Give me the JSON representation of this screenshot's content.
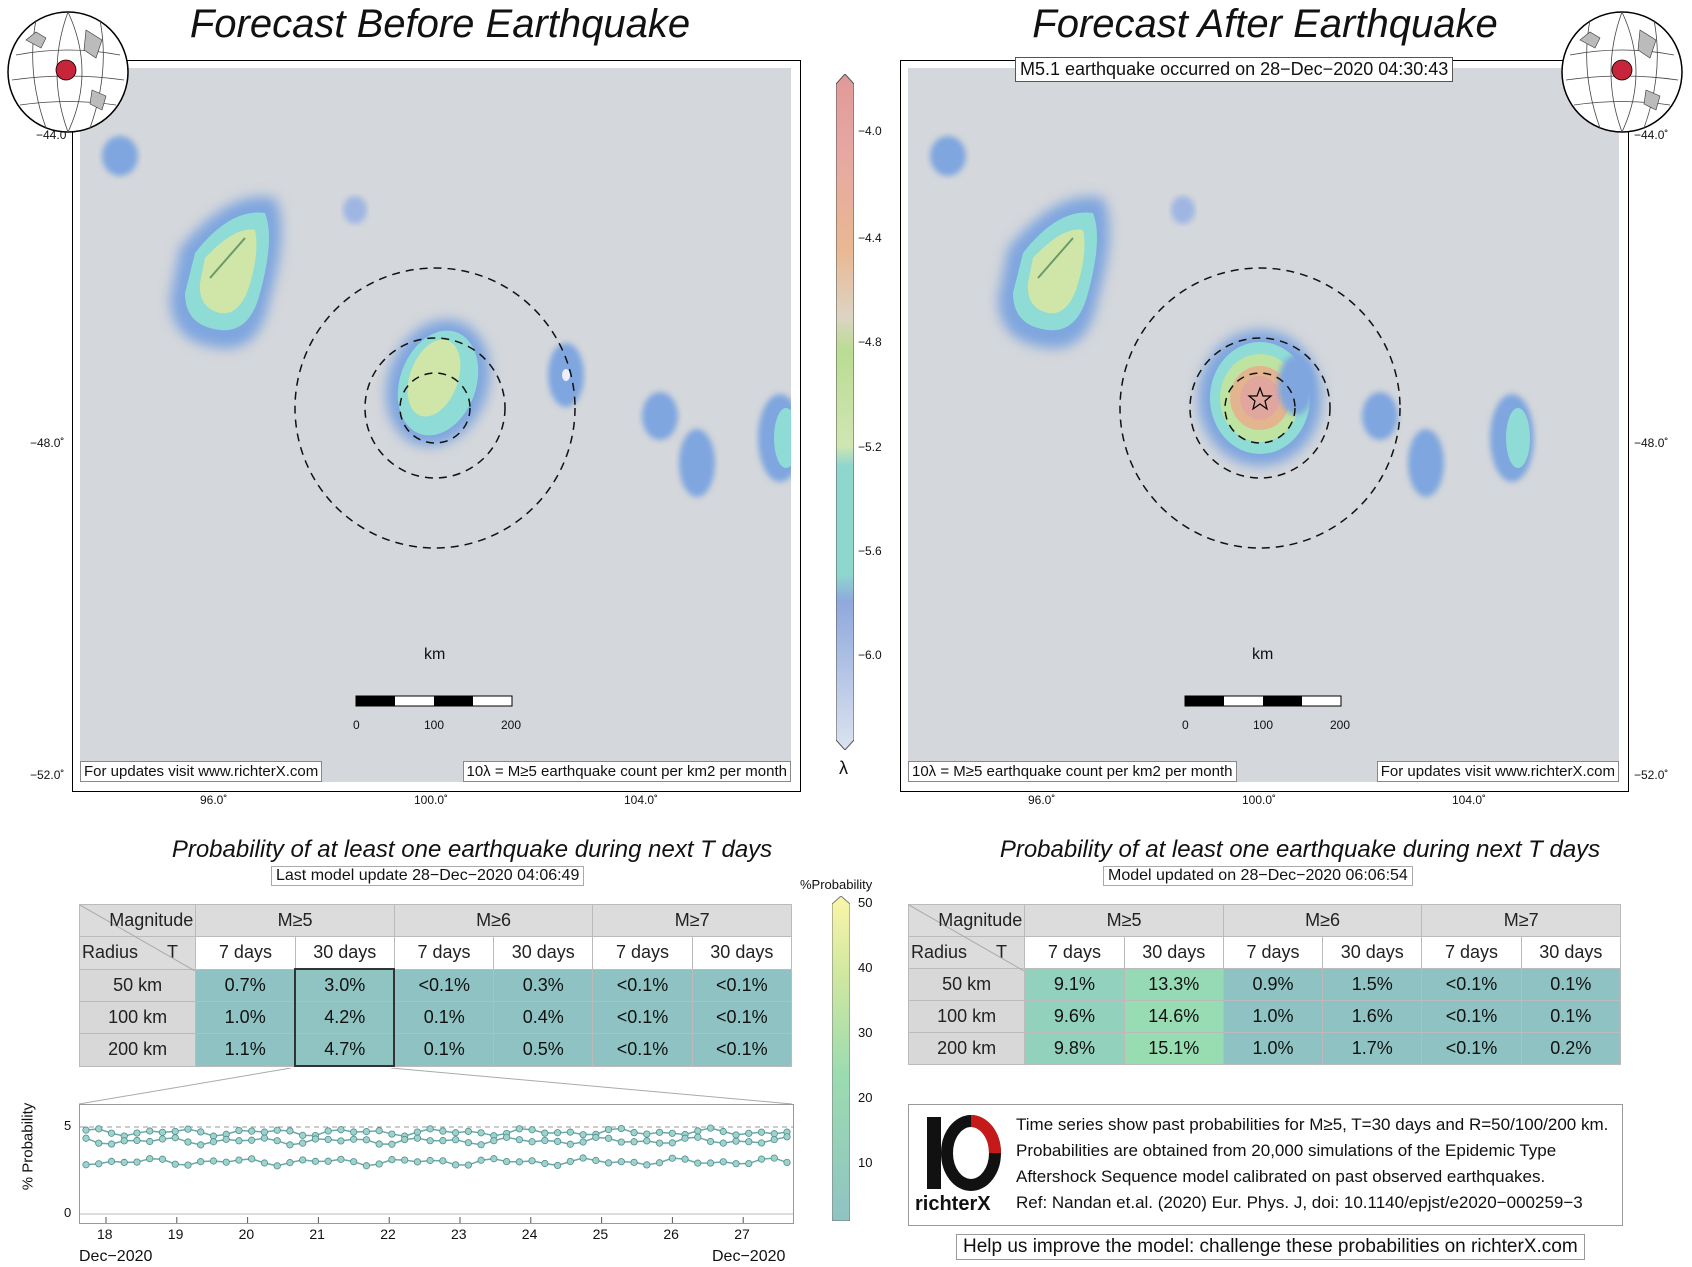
{
  "left_panel": {
    "title": "Forecast Before Earthquake",
    "lat_ticks": [
      "−44.0˚",
      "−48.0˚",
      "−52.0˚"
    ],
    "lon_ticks": [
      "96.0˚",
      "100.0˚",
      "104.0˚"
    ],
    "scale_title": "km",
    "scale_ticks": [
      "0",
      "100",
      "200"
    ],
    "note_left": "For updates visit www.richterX.com",
    "note_right": "10λ = M≥5 earthquake count per km2 per month"
  },
  "right_panel": {
    "title": "Forecast After Earthquake",
    "banner": "M5.1 earthquake occurred on 28−Dec−2020 04:30:43",
    "lat_ticks": [
      "−44.0˚",
      "−48.0˚",
      "−52.0˚"
    ],
    "lon_ticks": [
      "96.0˚",
      "100.0˚",
      "104.0˚"
    ],
    "scale_title": "km",
    "scale_ticks": [
      "0",
      "100",
      "200"
    ],
    "note_left": "10λ = M≥5 earthquake count per km2 per month",
    "note_right": "For updates visit www.richterX.com"
  },
  "lambda_bar": {
    "symbol": "λ",
    "ticks": [
      "−4.0",
      "−4.4",
      "−4.8",
      "−5.2",
      "−5.6",
      "−6.0"
    ]
  },
  "prob_bar": {
    "title": "%Probability",
    "ticks": [
      "50",
      "40",
      "30",
      "20",
      "10"
    ]
  },
  "left_table": {
    "title": "Probability of at least one earthquake during next T days",
    "subtitle": "Last model update 28−Dec−2020 04:06:49",
    "corner_top": "Magnitude",
    "corner_bottom_left": "Radius",
    "corner_bottom_right": "T",
    "mags": [
      "M≥5",
      "M≥6",
      "M≥7"
    ],
    "periods": [
      "7 days",
      "30 days",
      "7 days",
      "30 days",
      "7 days",
      "30 days"
    ],
    "rows": [
      {
        "radius": "50 km",
        "values": [
          "0.7%",
          "3.0%",
          "<0.1%",
          "0.3%",
          "<0.1%",
          "<0.1%"
        ]
      },
      {
        "radius": "100 km",
        "values": [
          "1.0%",
          "4.2%",
          "0.1%",
          "0.4%",
          "<0.1%",
          "<0.1%"
        ]
      },
      {
        "radius": "200 km",
        "values": [
          "1.1%",
          "4.7%",
          "0.1%",
          "0.5%",
          "<0.1%",
          "<0.1%"
        ]
      }
    ]
  },
  "right_table": {
    "title": "Probability of at least one earthquake during next T days",
    "subtitle": "Model updated on 28−Dec−2020 06:06:54",
    "corner_top": "Magnitude",
    "corner_bottom_left": "Radius",
    "corner_bottom_right": "T",
    "mags": [
      "M≥5",
      "M≥6",
      "M≥7"
    ],
    "periods": [
      "7 days",
      "30 days",
      "7 days",
      "30 days",
      "7 days",
      "30 days"
    ],
    "rows": [
      {
        "radius": "50 km",
        "values": [
          "9.1%",
          "13.3%",
          "0.9%",
          "1.5%",
          "<0.1%",
          "0.1%"
        ]
      },
      {
        "radius": "100 km",
        "values": [
          "9.6%",
          "14.6%",
          "1.0%",
          "1.6%",
          "<0.1%",
          "0.1%"
        ]
      },
      {
        "radius": "200 km",
        "values": [
          "9.8%",
          "15.1%",
          "1.0%",
          "1.7%",
          "<0.1%",
          "0.2%"
        ]
      }
    ]
  },
  "timeseries": {
    "ylabel": "% Probability",
    "y_ticks": [
      "5",
      "0"
    ],
    "x_ticks": [
      "18",
      "19",
      "20",
      "21",
      "22",
      "23",
      "24",
      "25",
      "26",
      "27"
    ],
    "x_left_label": "Dec−2020",
    "x_right_label": "Dec−2020",
    "series_levels": [
      4.7,
      4.2,
      3.0
    ]
  },
  "info_box": {
    "logo_text": "richterX",
    "lines": [
      "Time series show past probabilities for M≥5, T=30 days and R=50/100/200 km.",
      "Probabilities are obtained from 20,000 simulations of the Epidemic Type",
      "Aftershock Sequence model calibrated on past observed earthquakes.",
      "Ref: Nandan et.al. (2020) Eur. Phys. J, doi: 10.1140/epjst/e2020−000259−3"
    ]
  },
  "help_text": "Help us improve the model: challenge these probabilities on richterX.com",
  "colors": {
    "sea": "#d4d7db",
    "cell_low": "#8fc3c3",
    "cell_mid": "#93d6b6"
  }
}
